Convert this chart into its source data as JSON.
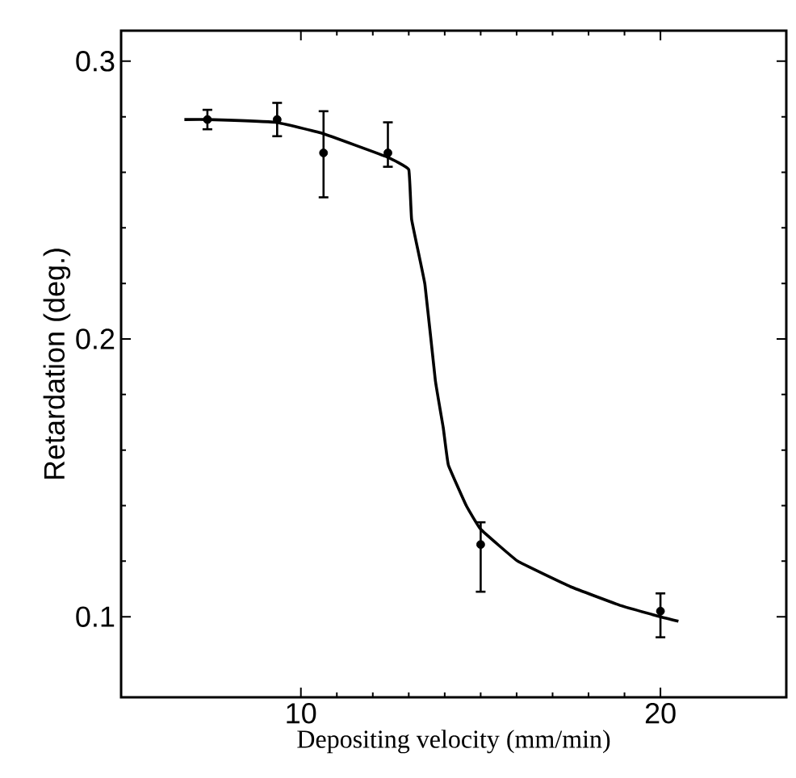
{
  "chart_data": {
    "type": "scatter",
    "xlabel": "Depositing velocity (mm/min)",
    "ylabel": "Retardation (deg.)",
    "xlim": [
      5,
      23.5
    ],
    "ylim": [
      0.071,
      0.311
    ],
    "xticks": [
      10,
      20
    ],
    "yticks": [
      0.1,
      0.2,
      0.3
    ],
    "grid": false,
    "series": [
      {
        "color": "#000000",
        "marker": "circle",
        "x": [
          7.4,
          9.34,
          10.63,
          12.42,
          15.0,
          20.0
        ],
        "values": [
          0.279,
          0.279,
          0.267,
          0.267,
          0.126,
          0.102
        ],
        "errors": [
          0.0035,
          0.006,
          [
            0.251,
            0.282
          ],
          [
            0.262,
            0.278
          ],
          [
            0.109,
            0.134
          ],
          [
            0.0926,
            0.1084
          ]
        ]
      },
      {
        "type": "line",
        "color": "#000000",
        "marker": "none",
        "line_style": "solid",
        "x": [
          6.76,
          7.4,
          9.3,
          10.6,
          12.4,
          13.0,
          13.08,
          13.45,
          13.74,
          13.96,
          14.1,
          14.6,
          15.0,
          16.03,
          17.5,
          18.9,
          20.0,
          20.5
        ],
        "values": [
          0.279,
          0.279,
          0.278,
          0.274,
          0.2655,
          0.261,
          0.243,
          0.2196,
          0.185,
          0.168,
          0.1547,
          0.14,
          0.1315,
          0.12,
          0.1108,
          0.104,
          0.1,
          0.0984
        ]
      }
    ]
  }
}
